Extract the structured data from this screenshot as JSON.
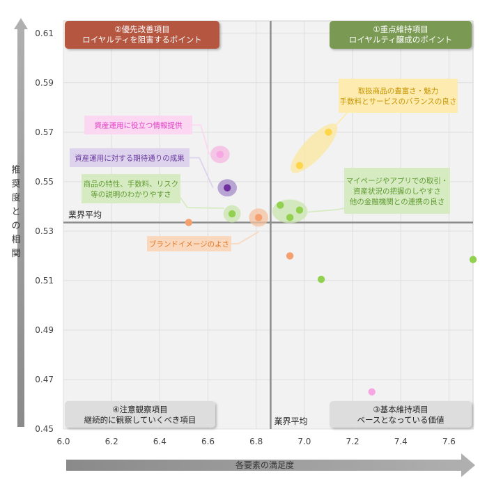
{
  "chart_data": {
    "type": "scatter",
    "title": "",
    "xlabel": "各要素の満足度",
    "ylabel": "推奨度との相関",
    "xlim": [
      6.0,
      7.7
    ],
    "ylim": [
      0.45,
      0.615
    ],
    "x_ticks": [
      "6.0",
      "6.2",
      "6.4",
      "6.6",
      "6.8",
      "7.0",
      "7.2",
      "7.4",
      "7.6"
    ],
    "x_tick_values": [
      6.0,
      6.2,
      6.4,
      6.6,
      6.8,
      7.0,
      7.2,
      7.4,
      7.6
    ],
    "y_ticks": [
      "0.61",
      "0.59",
      "0.57",
      "0.55",
      "0.53",
      "0.51",
      "0.49",
      "0.47",
      "0.45"
    ],
    "y_tick_values": [
      0.61,
      0.59,
      0.57,
      0.55,
      0.53,
      0.51,
      0.49,
      0.47,
      0.45
    ],
    "grid": true,
    "avg_x": 6.86,
    "avg_y": 0.5335,
    "avg_label_h": "業界平均",
    "avg_label_v": "業界平均",
    "quadrants": [
      {
        "key": "q2",
        "line1": "②優先改善項目",
        "line2": "ロイヤルティを阻害するポイント",
        "position": "top-left",
        "fill": "#b5573f"
      },
      {
        "key": "q1",
        "line1": "①重点維持項目",
        "line2": "ロイヤルティ醸成のポイント",
        "position": "top-right",
        "fill": "#7a9a52"
      },
      {
        "key": "q4",
        "line1": "④注意観察項目",
        "line2": "継続的に観察していくべき項目",
        "position": "bottom-left",
        "fill": "#dddddd"
      },
      {
        "key": "q3",
        "line1": "③基本維持項目",
        "line2": "ベースとなっている価値",
        "position": "bottom-right",
        "fill": "#dddddd"
      }
    ],
    "points": [
      {
        "x": 6.65,
        "y": 0.561,
        "color": "#f7a6e4"
      },
      {
        "x": 6.68,
        "y": 0.5475,
        "color": "#7030a0"
      },
      {
        "x": 6.7,
        "y": 0.537,
        "color": "#92d050"
      },
      {
        "x": 6.52,
        "y": 0.5335,
        "color": "#f4a070"
      },
      {
        "x": 6.81,
        "y": 0.5355,
        "color": "#f4a070"
      },
      {
        "x": 6.9,
        "y": 0.5405,
        "color": "#92d050"
      },
      {
        "x": 6.94,
        "y": 0.5355,
        "color": "#92d050"
      },
      {
        "x": 6.98,
        "y": 0.5385,
        "color": "#92d050"
      },
      {
        "x": 6.98,
        "y": 0.5565,
        "color": "#ffd54a"
      },
      {
        "x": 7.1,
        "y": 0.57,
        "color": "#ffd54a"
      },
      {
        "x": 6.94,
        "y": 0.52,
        "color": "#f4a070"
      },
      {
        "x": 7.07,
        "y": 0.5105,
        "color": "#92d050"
      },
      {
        "x": 7.7,
        "y": 0.5185,
        "color": "#92d050"
      },
      {
        "x": 7.28,
        "y": 0.465,
        "color": "#f7a6e4"
      }
    ],
    "highlights": [
      {
        "cx": 6.65,
        "cy": 0.561,
        "rx": 0.04,
        "ry": 0.0035,
        "angle": 0,
        "color": "#f4b6df"
      },
      {
        "cx": 6.68,
        "cy": 0.5475,
        "rx": 0.04,
        "ry": 0.0035,
        "angle": 0,
        "color": "#a58bc8"
      },
      {
        "cx": 6.7,
        "cy": 0.537,
        "rx": 0.036,
        "ry": 0.0035,
        "angle": 0,
        "color": "#c9e4ad"
      },
      {
        "cx": 6.81,
        "cy": 0.5355,
        "rx": 0.04,
        "ry": 0.0037,
        "angle": 0,
        "color": "#f4c29f"
      },
      {
        "cx": 6.94,
        "cy": 0.538,
        "rx": 0.073,
        "ry": 0.0048,
        "angle": 0,
        "color": "#c9e4ad"
      },
      {
        "cx": 7.04,
        "cy": 0.5635,
        "rx": 0.12,
        "ry": 0.0045,
        "angle": -47,
        "color": "#fbe79f"
      }
    ],
    "annotations": [
      {
        "key": "quality",
        "lines": [
          "取扱商品の豊富さ・魅力",
          "手数料とサービスのバランスの良さ"
        ],
        "color": "#c79400",
        "fill": "#fdebb0",
        "target": [
          7.1,
          0.572
        ]
      },
      {
        "key": "info",
        "lines": [
          "資産運用に役立つ情報提供"
        ],
        "color": "#e040c8",
        "fill": "#fbd7f1",
        "target": [
          6.64,
          0.561
        ]
      },
      {
        "key": "expect",
        "lines": [
          "資産運用に対する期待通りの成果"
        ],
        "color": "#6a3aa0",
        "fill": "#ded3ec",
        "target": [
          6.65,
          0.5475
        ]
      },
      {
        "key": "product",
        "lines": [
          "商品の特性、手数料、リスク",
          "等の説明のわかりやすさ"
        ],
        "color": "#5f9a30",
        "fill": "#d6ebc2",
        "target": [
          6.69,
          0.537
        ]
      },
      {
        "key": "mypage",
        "lines": [
          "マイページやアプリでの取引・",
          "資産状況の把握のしやすさ",
          "他の金融機関との連携の良さ"
        ],
        "color": "#5f9a30",
        "fill": "#d6ebc2",
        "target": [
          6.99,
          0.538
        ]
      },
      {
        "key": "brand",
        "lines": [
          "ブランドイメージのよさ"
        ],
        "color": "#e07a2a",
        "fill": "#f9d8be",
        "target": [
          6.81,
          0.5325
        ]
      }
    ]
  }
}
